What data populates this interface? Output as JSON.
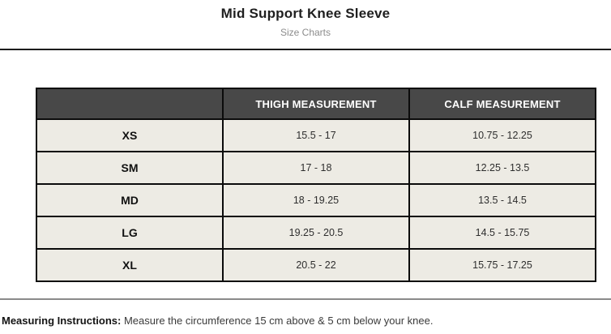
{
  "page": {
    "title": "Mid Support Knee Sleeve",
    "subtitle": "Size Charts"
  },
  "size_table": {
    "columns": [
      "",
      "THIGH MEASUREMENT",
      "CALF MEASUREMENT"
    ],
    "rows": [
      {
        "size": "XS",
        "thigh": "15.5 - 17",
        "calf": "10.75 - 12.25"
      },
      {
        "size": "SM",
        "thigh": "17 - 18",
        "calf": "12.25 - 13.5"
      },
      {
        "size": "MD",
        "thigh": "18 - 19.25",
        "calf": "13.5 - 14.5"
      },
      {
        "size": "LG",
        "thigh": "19.25 - 20.5",
        "calf": "14.5 - 15.75"
      },
      {
        "size": "XL",
        "thigh": "20.5 - 22",
        "calf": "15.75 - 17.25"
      }
    ]
  },
  "footer": {
    "instructions_label": "Measuring Instructions:",
    "instructions_text": " Measure the circumference 15 cm above & 5 cm below your knee."
  },
  "colors": {
    "header_background": "#484848",
    "header_text": "#ffffff",
    "row_background": "#edebe4",
    "table_border": "#0b0b0b",
    "top_divider": "#1c1c1c",
    "bottom_divider": "#8a8a8a",
    "subtitle_text": "#8c8c8c"
  }
}
